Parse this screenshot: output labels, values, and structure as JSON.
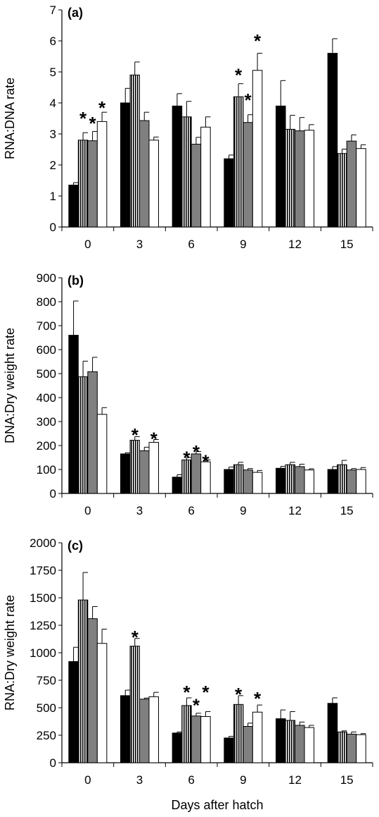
{
  "chart_data": [
    {
      "type": "bar",
      "panel_label": "(a)",
      "ylabel": "RNA:DNA rate",
      "xlabel": "",
      "ylim": [
        0,
        7
      ],
      "yticks": [
        0,
        1,
        2,
        3,
        4,
        5,
        6,
        7
      ],
      "categories": [
        "0",
        "3",
        "6",
        "9",
        "12",
        "15"
      ],
      "series": [
        {
          "fill": "black",
          "values": [
            1.35,
            4.0,
            3.9,
            2.2,
            3.9,
            5.6
          ],
          "errors": [
            0.08,
            0.47,
            0.4,
            0.12,
            0.82,
            0.47
          ]
        },
        {
          "fill": "striped",
          "values": [
            2.8,
            4.9,
            3.55,
            4.2,
            3.15,
            2.37
          ],
          "errors": [
            0.24,
            0.42,
            0.5,
            0.42,
            0.45,
            0.14
          ]
        },
        {
          "fill": "gray",
          "values": [
            2.78,
            3.43,
            2.67,
            3.37,
            3.1,
            2.77
          ],
          "errors": [
            0.3,
            0.27,
            0.22,
            0.25,
            0.43,
            0.2
          ]
        },
        {
          "fill": "white",
          "values": [
            3.4,
            2.8,
            3.22,
            5.05,
            3.12,
            2.53
          ],
          "errors": [
            0.3,
            0.1,
            0.33,
            0.55,
            0.18,
            0.12
          ]
        }
      ],
      "stars": [
        {
          "category": 0,
          "series": 1,
          "y": 3.7,
          "text": "*"
        },
        {
          "category": 0,
          "series": 2,
          "y": 3.55,
          "text": "*"
        },
        {
          "category": 0,
          "series": 3,
          "y": 4.05,
          "text": "*"
        },
        {
          "category": 3,
          "series": 1,
          "y": 5.1,
          "text": "*"
        },
        {
          "category": 3,
          "series": 2,
          "y": 4.3,
          "text": "*"
        },
        {
          "category": 3,
          "series": 3,
          "y": 6.2,
          "text": "*"
        }
      ]
    },
    {
      "type": "bar",
      "panel_label": "(b)",
      "ylabel": "DNA:Dry weight rate",
      "xlabel": "",
      "ylim": [
        0,
        900
      ],
      "yticks": [
        0,
        100,
        200,
        300,
        400,
        500,
        600,
        700,
        800,
        900
      ],
      "categories": [
        "0",
        "3",
        "6",
        "9",
        "12",
        "15"
      ],
      "series": [
        {
          "fill": "black",
          "values": [
            660,
            165,
            68,
            100,
            105,
            100
          ],
          "errors": [
            143,
            5,
            10,
            10,
            8,
            12
          ]
        },
        {
          "fill": "striped",
          "values": [
            487,
            222,
            140,
            120,
            120,
            120
          ],
          "errors": [
            65,
            15,
            10,
            10,
            10,
            18
          ]
        },
        {
          "fill": "gray",
          "values": [
            508,
            178,
            165,
            98,
            112,
            98
          ],
          "errors": [
            60,
            15,
            10,
            6,
            10,
            6
          ]
        },
        {
          "fill": "white",
          "values": [
            330,
            213,
            132,
            88,
            98,
            100
          ],
          "errors": [
            28,
            12,
            8,
            8,
            5,
            8
          ]
        }
      ],
      "stars": [
        {
          "category": 1,
          "series": 1,
          "y": 270,
          "text": "*"
        },
        {
          "category": 1,
          "series": 3,
          "y": 255,
          "text": "*"
        },
        {
          "category": 2,
          "series": 1,
          "y": 175,
          "text": "*"
        },
        {
          "category": 2,
          "series": 2,
          "y": 200,
          "text": "*"
        },
        {
          "category": 2,
          "series": 3,
          "y": 160,
          "text": "*"
        }
      ]
    },
    {
      "type": "bar",
      "panel_label": "(c)",
      "ylabel": "RNA:Dry weight rate",
      "xlabel": "Days after hatch",
      "ylim": [
        0,
        2000
      ],
      "yticks": [
        0,
        250,
        500,
        750,
        1000,
        1250,
        1500,
        1750,
        2000
      ],
      "categories": [
        "0",
        "3",
        "6",
        "9",
        "12",
        "15"
      ],
      "series": [
        {
          "fill": "black",
          "values": [
            920,
            610,
            270,
            225,
            400,
            540
          ],
          "errors": [
            130,
            50,
            10,
            15,
            80,
            50
          ]
        },
        {
          "fill": "striped",
          "values": [
            1480,
            1060,
            520,
            530,
            385,
            280
          ],
          "errors": [
            250,
            70,
            70,
            80,
            80,
            10
          ]
        },
        {
          "fill": "gray",
          "values": [
            1310,
            578,
            425,
            330,
            340,
            260
          ],
          "errors": [
            110,
            10,
            25,
            30,
            30,
            20
          ]
        },
        {
          "fill": "white",
          "values": [
            1085,
            600,
            420,
            460,
            320,
            255
          ],
          "errors": [
            130,
            40,
            45,
            65,
            20,
            10
          ]
        }
      ],
      "stars": [
        {
          "category": 1,
          "series": 1,
          "y": 1200,
          "text": "*"
        },
        {
          "category": 2,
          "series": 1,
          "y": 700,
          "text": "*"
        },
        {
          "category": 2,
          "series": 2,
          "y": 580,
          "text": "*"
        },
        {
          "category": 2,
          "series": 3,
          "y": 700,
          "text": "*"
        },
        {
          "category": 3,
          "series": 1,
          "y": 680,
          "text": "*"
        },
        {
          "category": 3,
          "series": 3,
          "y": 640,
          "text": "*"
        }
      ]
    }
  ]
}
